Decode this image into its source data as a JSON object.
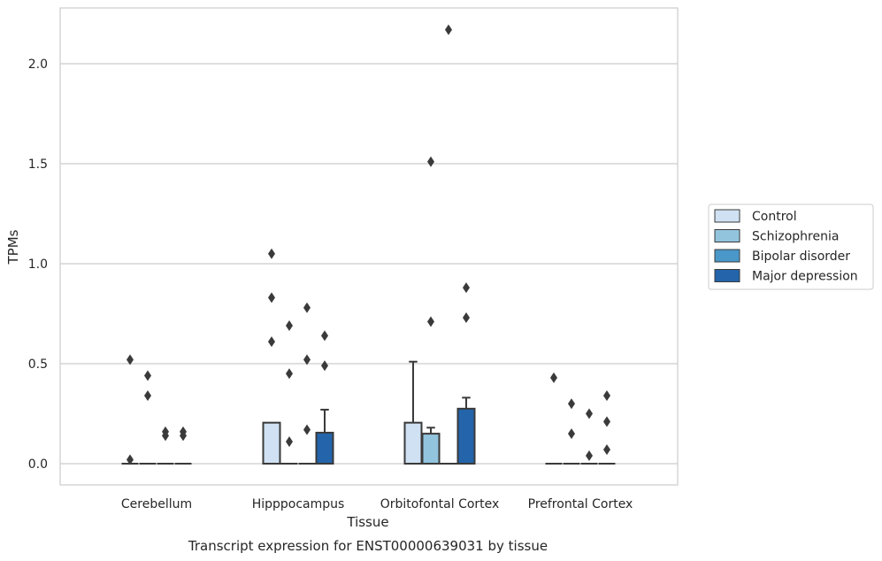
{
  "chart_data": {
    "type": "box",
    "title": "",
    "caption": "Transcript expression for ENST00000639031 by tissue",
    "xlabel": "Tissue",
    "ylabel": "TPMs",
    "ylim": [
      -0.1,
      2.28
    ],
    "yticks": [
      "0.0",
      "0.5",
      "1.0",
      "1.5",
      "2.0"
    ],
    "grid": "horizontal",
    "legend_position": "right",
    "categories": [
      "Cerebellum",
      "Hipppocampus",
      "Orbitofontal Cortex",
      "Prefrontal Cortex"
    ],
    "series": [
      {
        "name": "Control",
        "color": "#cfe1f2",
        "boxes": [
          {
            "q1": 0,
            "median": 0,
            "q3": 0,
            "whisker_low": 0,
            "whisker_high": 0,
            "outliers": [
              0.52,
              0.02
            ]
          },
          {
            "q1": 0,
            "median": 0,
            "q3": 0.205,
            "whisker_low": 0,
            "whisker_high": 0.205,
            "outliers": [
              1.05,
              0.83,
              0.61
            ]
          },
          {
            "q1": 0,
            "median": 0,
            "q3": 0.205,
            "whisker_low": 0,
            "whisker_high": 0.51,
            "outliers": []
          },
          {
            "q1": 0,
            "median": 0,
            "q3": 0,
            "whisker_low": 0,
            "whisker_high": 0,
            "outliers": [
              0.43
            ]
          }
        ]
      },
      {
        "name": "Schizophrenia",
        "color": "#93c4de",
        "boxes": [
          {
            "q1": 0,
            "median": 0,
            "q3": 0,
            "whisker_low": 0,
            "whisker_high": 0,
            "outliers": [
              0.44,
              0.34
            ]
          },
          {
            "q1": 0,
            "median": 0,
            "q3": 0,
            "whisker_low": 0,
            "whisker_high": 0,
            "outliers": [
              0.69,
              0.45,
              0.11
            ]
          },
          {
            "q1": 0,
            "median": 0,
            "q3": 0.15,
            "whisker_low": 0,
            "whisker_high": 0.18,
            "outliers": [
              1.51,
              0.71
            ]
          },
          {
            "q1": 0,
            "median": 0,
            "q3": 0,
            "whisker_low": 0,
            "whisker_high": 0,
            "outliers": [
              0.3,
              0.15
            ]
          }
        ]
      },
      {
        "name": "Bipolar disorder",
        "color": "#4a98c9",
        "boxes": [
          {
            "q1": 0,
            "median": 0,
            "q3": 0,
            "whisker_low": 0,
            "whisker_high": 0,
            "outliers": [
              0.16,
              0.14
            ]
          },
          {
            "q1": 0,
            "median": 0,
            "q3": 0,
            "whisker_low": 0,
            "whisker_high": 0,
            "outliers": [
              0.78,
              0.52,
              0.17
            ]
          },
          {
            "q1": 0,
            "median": 0,
            "q3": 0,
            "whisker_low": 0,
            "whisker_high": 0,
            "outliers": [
              2.17
            ]
          },
          {
            "q1": 0,
            "median": 0,
            "q3": 0,
            "whisker_low": 0,
            "whisker_high": 0,
            "outliers": [
              0.25,
              0.04
            ]
          }
        ]
      },
      {
        "name": "Major depression",
        "color": "#2364aa",
        "boxes": [
          {
            "q1": 0,
            "median": 0,
            "q3": 0,
            "whisker_low": 0,
            "whisker_high": 0,
            "outliers": [
              0.16,
              0.14
            ]
          },
          {
            "q1": 0,
            "median": 0,
            "q3": 0.155,
            "whisker_low": 0,
            "whisker_high": 0.27,
            "outliers": [
              0.64,
              0.49
            ]
          },
          {
            "q1": 0,
            "median": 0,
            "q3": 0.275,
            "whisker_low": 0,
            "whisker_high": 0.33,
            "outliers": [
              0.88,
              0.73
            ]
          },
          {
            "q1": 0,
            "median": 0,
            "q3": 0,
            "whisker_low": 0,
            "whisker_high": 0,
            "outliers": [
              0.34,
              0.21,
              0.07
            ]
          }
        ]
      }
    ]
  }
}
